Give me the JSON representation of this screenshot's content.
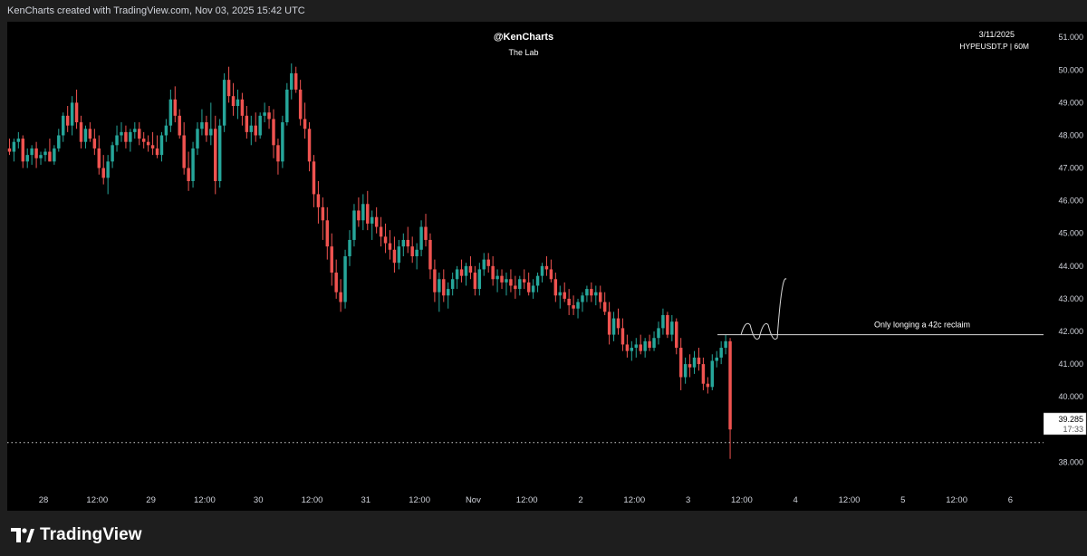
{
  "header": {
    "attribution": "KenCharts created with TradingView.com, Nov 03, 2025 15:42 UTC"
  },
  "overlay": {
    "author": "@KenCharts",
    "subtitle": "The Lab",
    "date": "3/11/2025",
    "symbol": "HYPEUSDT.P | 60M"
  },
  "footer": {
    "brand": "TradingView"
  },
  "colors": {
    "up": "#26a69a",
    "down": "#ef5350",
    "background": "#000000",
    "frame": "#1e1e1e",
    "text": "#d1d4dc"
  },
  "chart_data": {
    "type": "candlestick",
    "title": "@KenCharts",
    "subtitle": "The Lab",
    "symbol": "HYPEUSDT.P",
    "interval": "60M",
    "ylim": [
      37.4,
      51.2
    ],
    "y_ticks": [
      "51.000",
      "50.000",
      "49.000",
      "48.000",
      "47.000",
      "46.000",
      "45.000",
      "44.000",
      "43.000",
      "42.000",
      "41.000",
      "40.000",
      "38.000"
    ],
    "x_ticks": [
      "28",
      "12:00",
      "29",
      "12:00",
      "30",
      "12:00",
      "31",
      "12:00",
      "Nov",
      "12:00",
      "2",
      "12:00",
      "3",
      "12:00",
      "4",
      "12:00",
      "5",
      "12:00",
      "6"
    ],
    "bars_per_day": 24,
    "first_day_offset": -0.15,
    "ohlc": [
      [
        47.7,
        47.9,
        47.0,
        47.2
      ],
      [
        47.2,
        47.5,
        46.9,
        47.0
      ],
      [
        47.0,
        47.4,
        46.8,
        47.3
      ],
      [
        47.3,
        48.1,
        47.1,
        47.8
      ],
      [
        47.8,
        48.0,
        47.1,
        47.2
      ],
      [
        47.2,
        48.8,
        47.0,
        48.6
      ],
      [
        48.6,
        48.8,
        46.9,
        47.1
      ],
      [
        47.1,
        47.6,
        46.5,
        46.9
      ],
      [
        46.9,
        47.1,
        45.4,
        46.8
      ],
      [
        46.8,
        47.3,
        46.6,
        47.1
      ],
      [
        47.1,
        47.5,
        46.9,
        47.3
      ],
      [
        47.3,
        47.8,
        47.1,
        47.6
      ],
      [
        47.6,
        47.9,
        47.4,
        47.5
      ],
      [
        47.5,
        47.9,
        47.2,
        47.8
      ],
      [
        47.8,
        48.1,
        47.6,
        47.9
      ],
      [
        47.9,
        48.0,
        47.0,
        47.2
      ],
      [
        47.2,
        47.6,
        47.0,
        47.4
      ],
      [
        47.4,
        47.7,
        47.1,
        47.6
      ],
      [
        47.6,
        47.8,
        47.0,
        47.3
      ],
      [
        47.3,
        47.5,
        47.1,
        47.4
      ],
      [
        47.4,
        47.6,
        47.2,
        47.5
      ],
      [
        47.5,
        47.9,
        47.2,
        47.2
      ],
      [
        47.2,
        47.7,
        47.1,
        47.6
      ],
      [
        47.6,
        48.2,
        47.5,
        48.0
      ],
      [
        48.0,
        48.7,
        47.8,
        48.6
      ],
      [
        48.6,
        48.9,
        48.1,
        48.3
      ],
      [
        48.3,
        49.2,
        48.0,
        49.0
      ],
      [
        49.0,
        49.4,
        48.2,
        48.4
      ],
      [
        48.4,
        48.6,
        47.6,
        47.8
      ],
      [
        47.8,
        48.3,
        47.6,
        48.2
      ],
      [
        48.2,
        48.4,
        47.8,
        47.9
      ],
      [
        47.9,
        48.2,
        47.4,
        47.6
      ],
      [
        47.6,
        48.0,
        46.8,
        47.0
      ],
      [
        47.0,
        47.4,
        46.5,
        46.7
      ],
      [
        46.7,
        47.4,
        46.2,
        47.2
      ],
      [
        47.2,
        47.8,
        47.0,
        47.7
      ],
      [
        47.7,
        48.3,
        47.5,
        48.0
      ],
      [
        48.0,
        48.4,
        47.8,
        48.1
      ],
      [
        48.1,
        48.3,
        47.6,
        47.8
      ],
      [
        47.8,
        48.2,
        47.5,
        48.1
      ],
      [
        48.1,
        48.4,
        47.9,
        48.2
      ],
      [
        48.2,
        48.4,
        47.7,
        47.9
      ],
      [
        47.9,
        48.1,
        47.6,
        47.8
      ],
      [
        47.8,
        48.0,
        47.5,
        47.7
      ],
      [
        47.7,
        48.1,
        47.4,
        47.6
      ],
      [
        47.6,
        48.0,
        47.3,
        47.4
      ],
      [
        47.4,
        48.1,
        47.2,
        48.0
      ],
      [
        48.0,
        48.5,
        47.8,
        48.3
      ],
      [
        48.3,
        49.4,
        48.1,
        49.1
      ],
      [
        49.1,
        49.5,
        48.4,
        48.6
      ],
      [
        48.6,
        48.8,
        47.9,
        48.0
      ],
      [
        48.0,
        48.4,
        46.8,
        47.0
      ],
      [
        47.0,
        47.5,
        46.3,
        46.6
      ],
      [
        46.6,
        47.8,
        46.4,
        47.6
      ],
      [
        47.6,
        48.4,
        47.4,
        48.2
      ],
      [
        48.2,
        48.8,
        48.0,
        48.4
      ],
      [
        48.4,
        48.6,
        47.8,
        48.0
      ],
      [
        48.0,
        49.0,
        47.7,
        48.2
      ],
      [
        48.2,
        48.6,
        46.2,
        46.6
      ],
      [
        46.6,
        48.5,
        46.4,
        48.3
      ],
      [
        48.3,
        49.9,
        48.1,
        49.7
      ],
      [
        49.7,
        50.1,
        49.0,
        49.2
      ],
      [
        49.2,
        49.6,
        48.6,
        48.9
      ],
      [
        48.9,
        49.4,
        48.5,
        49.1
      ],
      [
        49.1,
        49.3,
        48.3,
        48.6
      ],
      [
        48.6,
        48.9,
        47.9,
        48.1
      ],
      [
        48.1,
        48.6,
        47.7,
        48.3
      ],
      [
        48.3,
        48.7,
        47.8,
        48.0
      ],
      [
        48.0,
        48.7,
        47.9,
        48.6
      ],
      [
        48.6,
        49.0,
        48.4,
        48.7
      ],
      [
        48.7,
        48.9,
        48.2,
        48.5
      ],
      [
        48.5,
        48.8,
        47.3,
        47.7
      ],
      [
        47.7,
        47.9,
        46.8,
        47.2
      ],
      [
        47.2,
        48.6,
        47.0,
        48.4
      ],
      [
        48.4,
        49.6,
        48.3,
        49.4
      ],
      [
        49.4,
        50.2,
        49.1,
        49.9
      ],
      [
        49.9,
        50.1,
        49.3,
        49.4
      ],
      [
        49.4,
        49.7,
        48.3,
        48.5
      ],
      [
        48.5,
        49.0,
        47.9,
        48.2
      ],
      [
        48.2,
        48.4,
        46.9,
        47.2
      ],
      [
        47.2,
        47.4,
        45.8,
        46.2
      ],
      [
        46.2,
        46.6,
        45.3,
        45.8
      ],
      [
        45.8,
        46.1,
        44.8,
        45.4
      ],
      [
        45.4,
        45.8,
        44.2,
        44.6
      ],
      [
        44.6,
        45.0,
        43.4,
        43.8
      ],
      [
        43.8,
        44.2,
        43.0,
        43.2
      ],
      [
        43.2,
        43.6,
        42.6,
        42.9
      ],
      [
        42.9,
        44.5,
        42.7,
        44.3
      ],
      [
        44.3,
        45.1,
        44.0,
        44.8
      ],
      [
        44.8,
        45.9,
        44.6,
        45.7
      ],
      [
        45.7,
        46.1,
        45.2,
        45.4
      ],
      [
        45.4,
        46.2,
        45.1,
        45.9
      ],
      [
        45.9,
        46.3,
        45.1,
        45.3
      ],
      [
        45.3,
        45.7,
        44.8,
        45.5
      ],
      [
        45.5,
        45.8,
        45.0,
        45.2
      ],
      [
        45.2,
        45.5,
        44.6,
        44.9
      ],
      [
        44.9,
        45.3,
        44.4,
        44.7
      ],
      [
        44.7,
        45.1,
        44.2,
        44.5
      ],
      [
        44.5,
        44.9,
        43.8,
        44.1
      ],
      [
        44.1,
        44.8,
        43.9,
        44.6
      ],
      [
        44.6,
        45.0,
        44.3,
        44.8
      ],
      [
        44.8,
        45.2,
        44.4,
        44.6
      ],
      [
        44.6,
        44.9,
        44.1,
        44.3
      ],
      [
        44.3,
        44.7,
        43.9,
        44.5
      ],
      [
        44.5,
        45.4,
        44.3,
        45.2
      ],
      [
        45.2,
        45.6,
        44.6,
        44.8
      ],
      [
        44.8,
        45.0,
        43.6,
        43.9
      ],
      [
        43.9,
        44.2,
        42.9,
        43.2
      ],
      [
        43.2,
        43.8,
        42.6,
        43.6
      ],
      [
        43.6,
        43.9,
        42.9,
        43.1
      ],
      [
        43.1,
        43.5,
        42.7,
        43.3
      ],
      [
        43.3,
        43.8,
        43.1,
        43.6
      ],
      [
        43.6,
        44.0,
        43.3,
        43.9
      ],
      [
        43.9,
        44.2,
        43.5,
        43.7
      ],
      [
        43.7,
        44.1,
        43.4,
        44.0
      ],
      [
        44.0,
        44.3,
        43.6,
        43.8
      ],
      [
        43.8,
        44.0,
        43.1,
        43.3
      ],
      [
        43.3,
        44.1,
        43.1,
        43.9
      ],
      [
        43.9,
        44.4,
        43.7,
        44.2
      ],
      [
        44.2,
        44.4,
        43.8,
        44.0
      ],
      [
        44.0,
        44.3,
        43.4,
        43.6
      ],
      [
        43.6,
        43.9,
        43.2,
        43.7
      ],
      [
        43.7,
        43.9,
        43.3,
        43.5
      ],
      [
        43.5,
        43.8,
        43.1,
        43.6
      ],
      [
        43.6,
        43.9,
        43.2,
        43.4
      ],
      [
        43.4,
        43.7,
        43.0,
        43.3
      ],
      [
        43.3,
        43.7,
        43.1,
        43.6
      ],
      [
        43.6,
        43.9,
        43.3,
        43.5
      ],
      [
        43.5,
        43.8,
        43.1,
        43.2
      ],
      [
        43.2,
        43.6,
        43.0,
        43.4
      ],
      [
        43.4,
        43.8,
        43.2,
        43.7
      ],
      [
        43.7,
        44.1,
        43.5,
        44.0
      ],
      [
        44.0,
        44.3,
        43.7,
        43.9
      ],
      [
        43.9,
        44.2,
        43.5,
        43.6
      ],
      [
        43.6,
        43.8,
        42.9,
        43.1
      ],
      [
        43.1,
        43.4,
        42.7,
        43.2
      ],
      [
        43.2,
        43.5,
        42.9,
        43.0
      ],
      [
        43.0,
        43.3,
        42.5,
        42.8
      ],
      [
        42.8,
        43.1,
        42.5,
        42.7
      ],
      [
        42.7,
        43.0,
        42.4,
        42.9
      ],
      [
        42.9,
        43.2,
        42.6,
        43.1
      ],
      [
        43.1,
        43.4,
        42.9,
        43.3
      ],
      [
        43.3,
        43.5,
        42.9,
        43.1
      ],
      [
        43.1,
        43.4,
        42.8,
        43.2
      ],
      [
        43.2,
        43.4,
        42.7,
        42.9
      ],
      [
        42.9,
        43.2,
        42.5,
        42.6
      ],
      [
        42.6,
        42.9,
        41.6,
        41.9
      ],
      [
        41.9,
        42.6,
        41.7,
        42.4
      ],
      [
        42.4,
        42.7,
        41.9,
        42.1
      ],
      [
        42.1,
        42.4,
        41.4,
        41.6
      ],
      [
        41.6,
        41.9,
        41.2,
        41.4
      ],
      [
        41.4,
        41.7,
        41.1,
        41.5
      ],
      [
        41.5,
        41.8,
        41.2,
        41.6
      ],
      [
        41.6,
        41.9,
        41.3,
        41.4
      ],
      [
        41.4,
        41.8,
        41.2,
        41.7
      ],
      [
        41.7,
        41.9,
        41.4,
        41.5
      ],
      [
        41.5,
        42.0,
        41.4,
        41.8
      ],
      [
        41.8,
        42.3,
        41.6,
        42.1
      ],
      [
        42.1,
        42.7,
        41.9,
        42.5
      ],
      [
        42.5,
        42.6,
        41.8,
        41.9
      ],
      [
        41.9,
        42.5,
        41.7,
        42.3
      ],
      [
        42.3,
        42.4,
        41.3,
        41.5
      ],
      [
        41.5,
        41.8,
        40.2,
        40.6
      ],
      [
        40.6,
        41.2,
        40.4,
        41.0
      ],
      [
        41.0,
        41.3,
        40.6,
        40.9
      ],
      [
        40.9,
        41.4,
        40.7,
        41.2
      ],
      [
        41.2,
        41.5,
        40.8,
        41.0
      ],
      [
        41.0,
        41.2,
        40.2,
        40.4
      ],
      [
        40.4,
        40.6,
        40.1,
        40.3
      ],
      [
        40.3,
        41.3,
        40.2,
        41.1
      ],
      [
        41.1,
        41.4,
        40.9,
        41.2
      ],
      [
        41.2,
        41.7,
        41.0,
        41.5
      ],
      [
        41.5,
        41.9,
        41.3,
        41.7
      ],
      [
        41.7,
        41.8,
        38.1,
        39.0
      ]
    ],
    "horizontal_levels": [
      {
        "price": 41.9,
        "label": "Only longing a 42c reclaim",
        "style": "solid"
      },
      {
        "price": 38.6,
        "label": "",
        "style": "dotted"
      }
    ],
    "price_marker": {
      "price": "39.285",
      "countdown": "17:33"
    },
    "projection_path": [
      [
        0,
        41.9
      ],
      [
        1,
        42.2
      ],
      [
        2,
        41.8
      ],
      [
        3,
        42.2
      ],
      [
        4,
        41.8
      ],
      [
        5,
        43.6
      ]
    ]
  }
}
